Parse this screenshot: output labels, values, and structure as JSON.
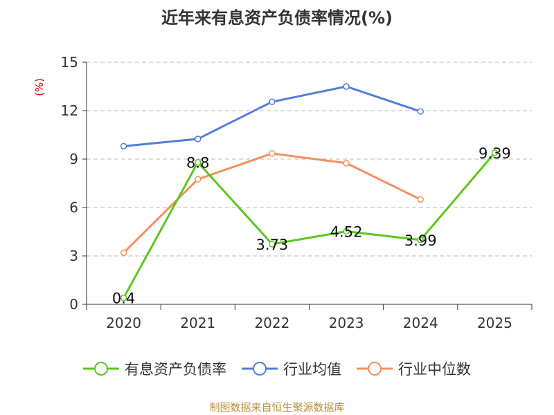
{
  "chart_data": {
    "type": "line",
    "title": "近年来有息资产负债率情况(%)",
    "ylabel": "(%)",
    "xlabel": "",
    "categories": [
      "2020",
      "2021",
      "2022",
      "2023",
      "2024",
      "2025"
    ],
    "ylim": [
      0,
      15
    ],
    "yticks": [
      0,
      3,
      6,
      9,
      12,
      15
    ],
    "ytick_labels": [
      "0",
      "3",
      "6",
      "9",
      "12",
      "15"
    ],
    "grid": true,
    "legend_position": "bottom",
    "series": [
      {
        "name": "有息资产负债率",
        "color": "#5cc71f",
        "values": [
          0.4,
          8.8,
          3.73,
          4.52,
          3.99,
          9.39
        ],
        "labels": [
          "0.4",
          "8.8",
          "3.73",
          "4.52",
          "3.99",
          "9.39"
        ]
      },
      {
        "name": "行业均值",
        "color": "#4f7fd9",
        "values": [
          9.8,
          10.25,
          12.55,
          13.5,
          11.95,
          null
        ]
      },
      {
        "name": "行业中位数",
        "color": "#f78f5c",
        "values": [
          3.2,
          7.75,
          9.35,
          8.75,
          6.5,
          null
        ]
      }
    ]
  },
  "source": "制图数据来自恒生聚源数据库"
}
